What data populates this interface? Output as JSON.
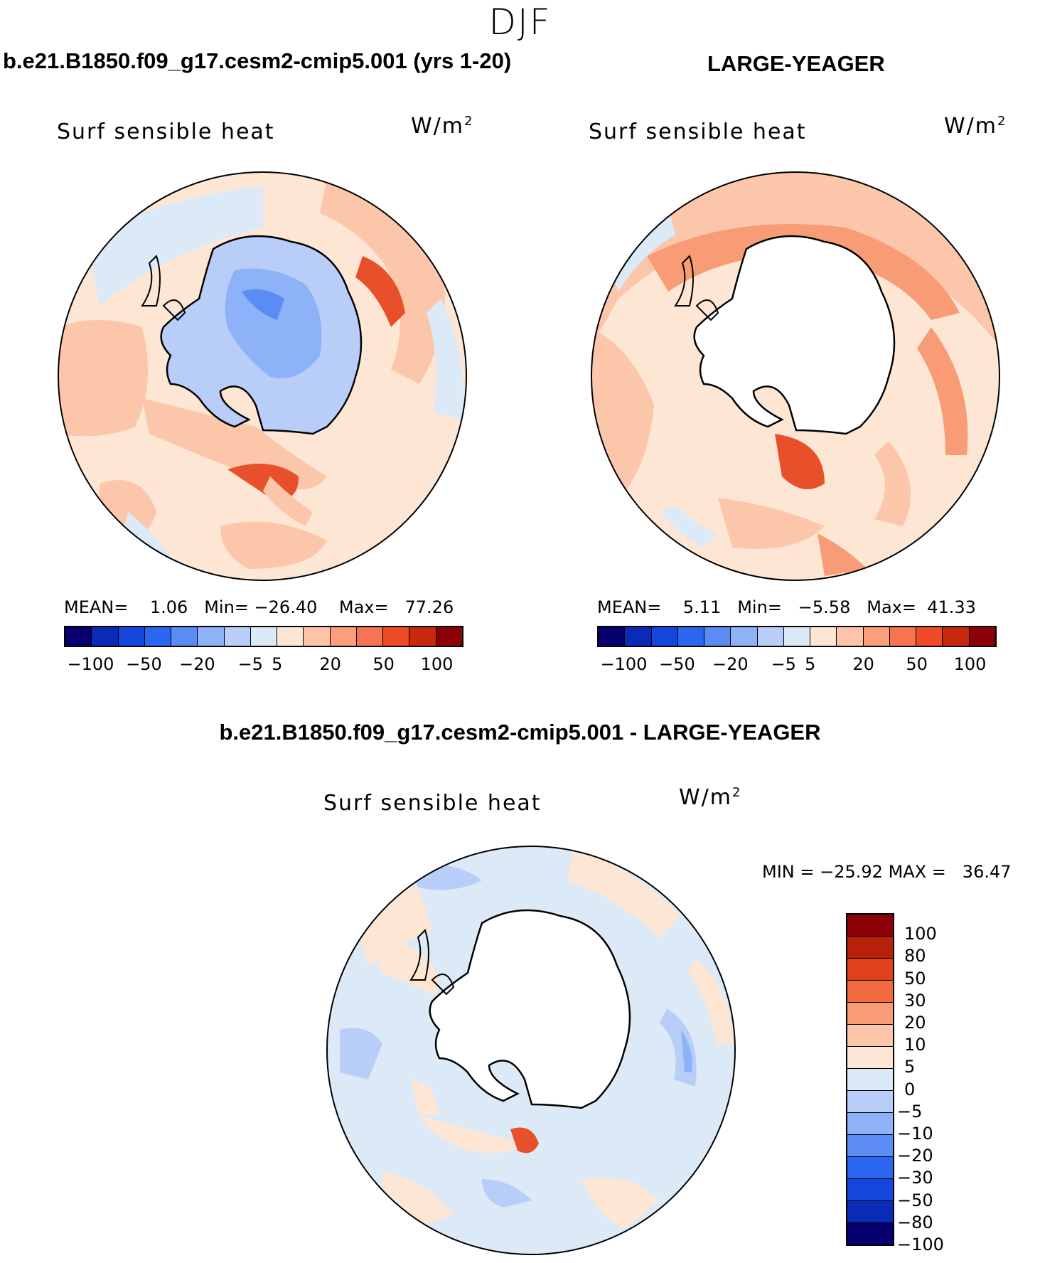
{
  "season": "DJF",
  "panels": {
    "top_left": {
      "title": "b.e21.B1850.f09_g17.cesm2-cmip5.001 (yrs 1-20)",
      "variable": "Surf sensible heat",
      "units_base": "W/m",
      "units_exp": "2",
      "mean_label": "MEAN=",
      "mean": "1.06",
      "min_label": "Min=",
      "min": "−26.40",
      "max_label": "Max=",
      "max": "77.26",
      "colorbar_ticks": [
        "−100",
        "−50",
        "−20",
        "−5",
        "5",
        "20",
        "50",
        "100"
      ]
    },
    "top_right": {
      "title": "LARGE-YEAGER",
      "variable": "Surf sensible heat",
      "units_base": "W/m",
      "units_exp": "2",
      "mean_label": "MEAN=",
      "mean": "5.11",
      "min_label": "Min=",
      "min": "−5.58",
      "max_label": "Max=",
      "max": "41.33",
      "colorbar_ticks": [
        "−100",
        "−50",
        "−20",
        "−5",
        "5",
        "20",
        "50",
        "100"
      ]
    },
    "bottom": {
      "title": "b.e21.B1850.f09_g17.cesm2-cmip5.001 - LARGE-YEAGER",
      "variable": "Surf sensible heat",
      "units_base": "W/m",
      "units_exp": "2",
      "min_label": "MIN =",
      "min": "−25.92",
      "max_label": "MAX =",
      "max": "36.47",
      "colorbar_ticks": [
        "100",
        "80",
        "50",
        "30",
        "20",
        "10",
        "5",
        "0",
        "−5",
        "−10",
        "−20",
        "−30",
        "−50",
        "−80",
        "−100"
      ]
    }
  },
  "colors": {
    "hbar": [
      "#08006e",
      "#0a2ab8",
      "#1448dc",
      "#2a66f0",
      "#5a8cf4",
      "#8eb2f8",
      "#b8cef8",
      "#dceaf8",
      "#fde6d4",
      "#fdc4a8",
      "#fb9e7c",
      "#f77452",
      "#ee4a26",
      "#c8280c",
      "#8c0008"
    ],
    "vbar": [
      "#8c0008",
      "#b8200a",
      "#e0401c",
      "#f26a40",
      "#f89c76",
      "#fcc6aa",
      "#fde6d4",
      "#dceaf8",
      "#b8cef8",
      "#8eb2f8",
      "#5a8cf4",
      "#2a66f0",
      "#1448dc",
      "#0a2ab8",
      "#08006e"
    ],
    "pos_light": "#fde6d4",
    "pos_mid": "#fcc6aa",
    "pos_strong": "#f89c76",
    "pos_deep": "#e8502c",
    "neg_light": "#dceaf8",
    "neg_mid": "#b8cef8",
    "neg_strong": "#8eb2f8",
    "neg_deep": "#5a8cf4",
    "neg_vdeep": "#2a66f0"
  }
}
